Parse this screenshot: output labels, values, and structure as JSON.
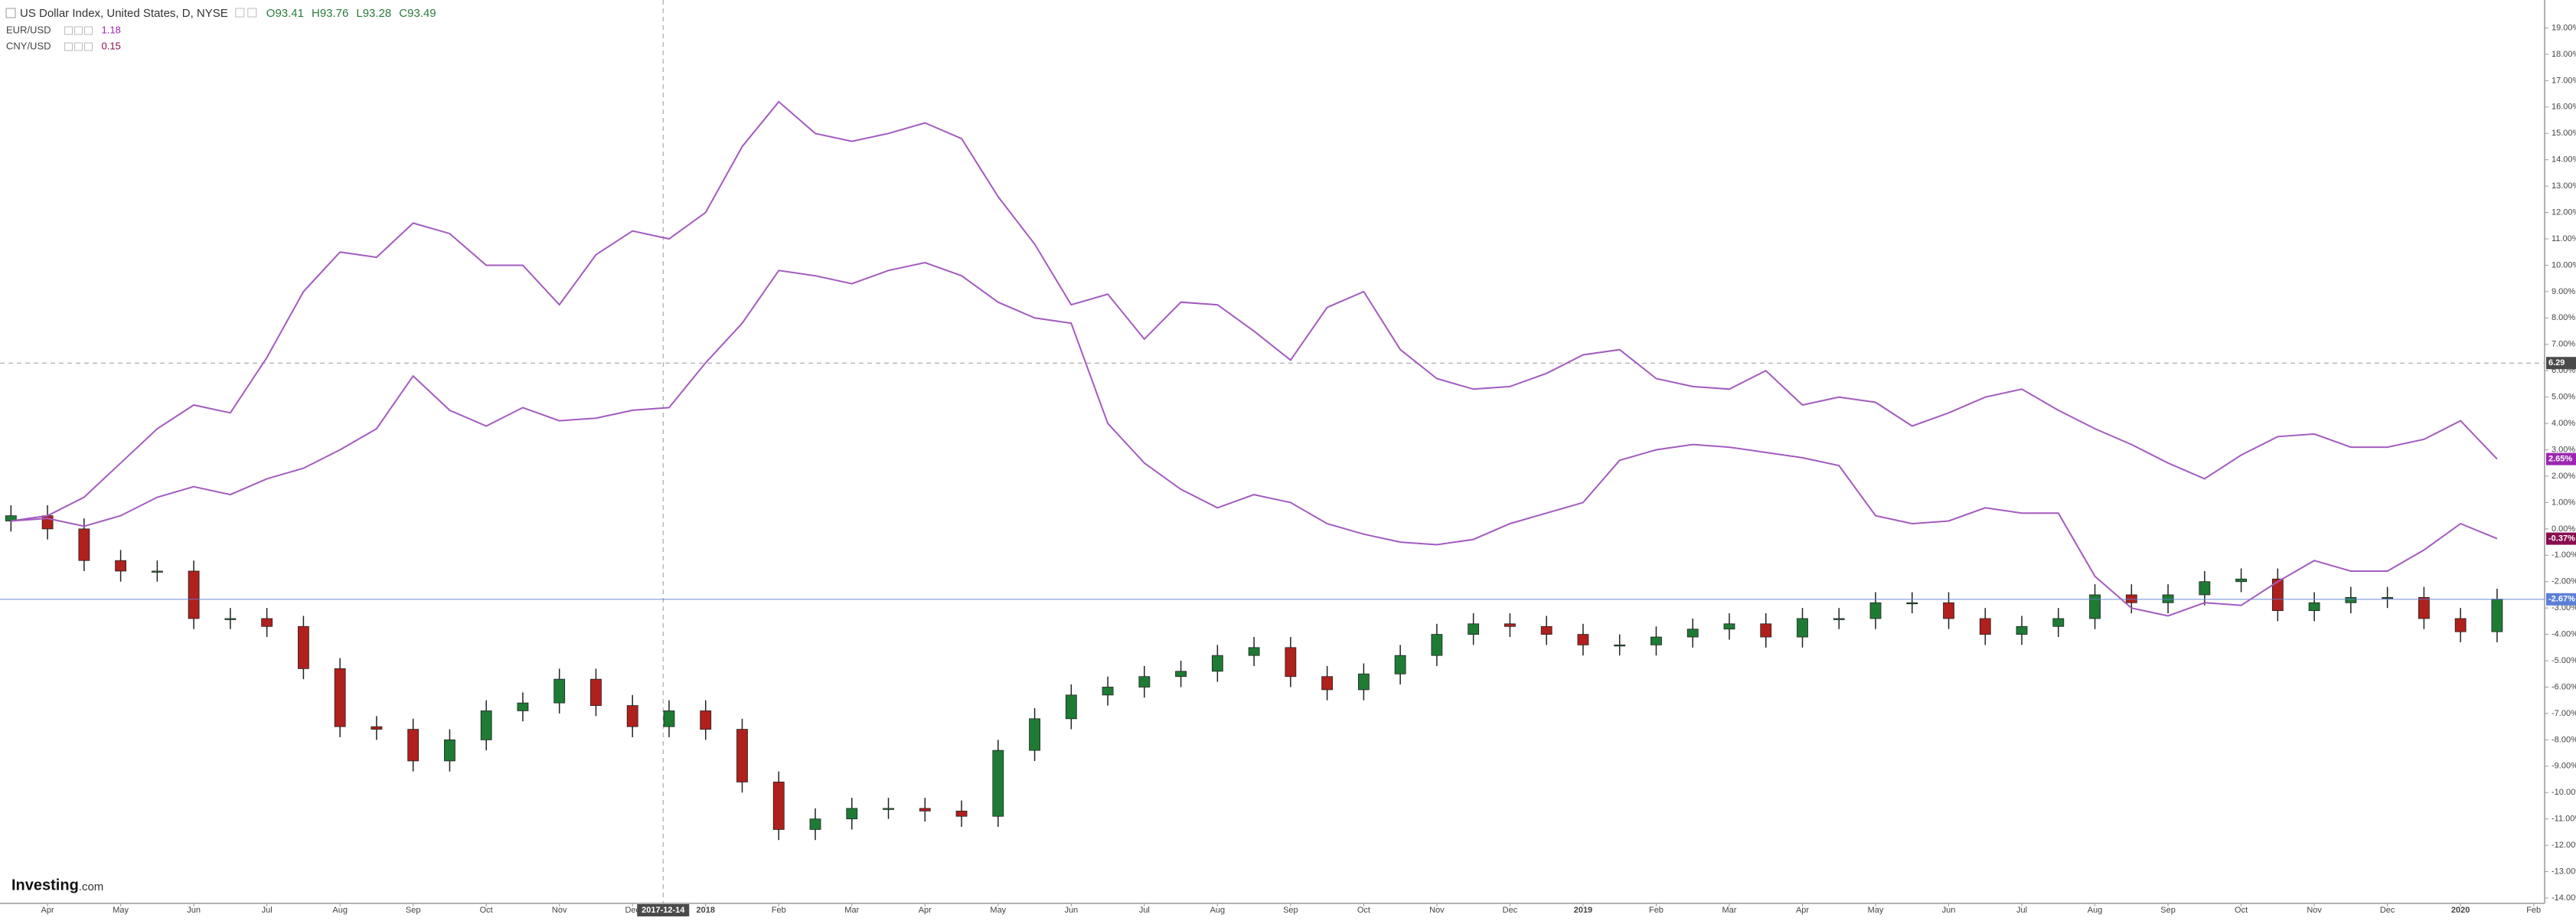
{
  "chart_data": {
    "type": "candlestick",
    "header": {
      "title": "US Dollar Index, United States, D, NYSE",
      "ohlc_labels": [
        "O93.41",
        "H93.76",
        "L93.28",
        "C93.49"
      ]
    },
    "xlim": [
      -0.3,
      69.3
    ],
    "xticks": [
      {
        "value": 1,
        "label": "Apr"
      },
      {
        "value": 3,
        "label": "May"
      },
      {
        "value": 5,
        "label": "Jun"
      },
      {
        "value": 7,
        "label": "Jul"
      },
      {
        "value": 9,
        "label": "Aug"
      },
      {
        "value": 11,
        "label": "Sep"
      },
      {
        "value": 13,
        "label": "Oct"
      },
      {
        "value": 15,
        "label": "Nov"
      },
      {
        "value": 17,
        "label": "Dec"
      },
      {
        "value": 19,
        "label": "2018"
      },
      {
        "value": 21,
        "label": "Feb"
      },
      {
        "value": 23,
        "label": "Mar"
      },
      {
        "value": 25,
        "label": "Apr"
      },
      {
        "value": 27,
        "label": "May"
      },
      {
        "value": 29,
        "label": "Jun"
      },
      {
        "value": 31,
        "label": "Jul"
      },
      {
        "value": 33,
        "label": "Aug"
      },
      {
        "value": 35,
        "label": "Sep"
      },
      {
        "value": 37,
        "label": "Oct"
      },
      {
        "value": 39,
        "label": "Nov"
      },
      {
        "value": 41,
        "label": "Dec"
      },
      {
        "value": 43,
        "label": "2019"
      },
      {
        "value": 45,
        "label": "Feb"
      },
      {
        "value": 47,
        "label": "Mar"
      },
      {
        "value": 49,
        "label": "Apr"
      },
      {
        "value": 51,
        "label": "May"
      },
      {
        "value": 53,
        "label": "Jun"
      },
      {
        "value": 55,
        "label": "Jul"
      },
      {
        "value": 57,
        "label": "Aug"
      },
      {
        "value": 59,
        "label": "Sep"
      },
      {
        "value": 61,
        "label": "Oct"
      },
      {
        "value": 63,
        "label": "Nov"
      },
      {
        "value": 65,
        "label": "Dec"
      },
      {
        "value": 67,
        "label": "2020"
      },
      {
        "value": 69,
        "label": "Feb"
      }
    ],
    "ylim": [
      -14,
      19
    ],
    "yticks": [
      {
        "value": 19,
        "label": "19.00%"
      },
      {
        "value": 18,
        "label": "18.00%"
      },
      {
        "value": 17,
        "label": "17.00%"
      },
      {
        "value": 16,
        "label": "16.00%"
      },
      {
        "value": 15,
        "label": "15.00%"
      },
      {
        "value": 14,
        "label": "14.00%"
      },
      {
        "value": 13,
        "label": "13.00%"
      },
      {
        "value": 12,
        "label": "12.00%"
      },
      {
        "value": 11,
        "label": "11.00%"
      },
      {
        "value": 10,
        "label": "10.00%"
      },
      {
        "value": 9,
        "label": "9.00%"
      },
      {
        "value": 8,
        "label": "8.00%"
      },
      {
        "value": 7,
        "label": "7.00%"
      },
      {
        "value": 6,
        "label": "6.00%"
      },
      {
        "value": 5,
        "label": "5.00%"
      },
      {
        "value": 4,
        "label": "4.00%"
      },
      {
        "value": 3,
        "label": "3.00%"
      },
      {
        "value": 2,
        "label": "2.00%"
      },
      {
        "value": 1,
        "label": "1.00%"
      },
      {
        "value": 0,
        "label": "0.00%"
      },
      {
        "value": -1,
        "label": "-1.00%"
      },
      {
        "value": -2,
        "label": "-2.00%"
      },
      {
        "value": -3,
        "label": "-3.00%"
      },
      {
        "value": -4,
        "label": "-4.00%"
      },
      {
        "value": -5,
        "label": "-5.00%"
      },
      {
        "value": -6,
        "label": "-6.00%"
      },
      {
        "value": -7,
        "label": "-7.00%"
      },
      {
        "value": -8,
        "label": "-8.00%"
      },
      {
        "value": -9,
        "label": "-9.00%"
      },
      {
        "value": -10,
        "label": "-10.00%"
      },
      {
        "value": -11,
        "label": "-11.00%"
      },
      {
        "value": -12,
        "label": "-12.00%"
      },
      {
        "value": -13,
        "label": "-13.00%"
      },
      {
        "value": -14,
        "label": "-14.00%"
      }
    ],
    "crosshair": {
      "x": "2017-12-14",
      "y": 6.29
    },
    "series": [
      {
        "name": "US Dollar Index, United States, D, NYSE",
        "type": "candlestick",
        "up_color": "#1e7b34",
        "down_color": "#b0201c",
        "tag_color": "#5b7fd6",
        "last_label": "-2.67%",
        "open": [
          0.3,
          0.5,
          0.0,
          -1.2,
          -1.6,
          -1.6,
          -3.4,
          -3.4,
          -3.7,
          -5.3,
          -7.5,
          -7.6,
          -8.8,
          -8.0,
          -6.9,
          -6.6,
          -5.7,
          -6.7,
          -7.5,
          -6.9,
          -7.6,
          -9.6,
          -11.4,
          -11.0,
          -10.6,
          -10.6,
          -10.7,
          -10.9,
          -8.4,
          -7.2,
          -6.3,
          -6.0,
          -5.6,
          -5.4,
          -4.8,
          -4.5,
          -5.6,
          -6.1,
          -5.5,
          -4.8,
          -4.0,
          -3.6,
          -3.7,
          -4.0,
          -4.4,
          -4.4,
          -4.1,
          -3.8,
          -3.6,
          -4.1,
          -3.4,
          -3.4,
          -2.8,
          -2.8,
          -3.4,
          -4.0,
          -3.7,
          -3.4,
          -2.5,
          -2.8,
          -2.5,
          -2.0,
          -1.9,
          -3.1,
          -2.8,
          -2.6,
          -2.6,
          -3.4,
          -3.9
        ],
        "high": [
          0.9,
          0.9,
          0.4,
          -0.8,
          -1.2,
          -1.2,
          -3.0,
          -3.0,
          -3.3,
          -4.9,
          -7.1,
          -7.2,
          -7.6,
          -6.5,
          -6.2,
          -5.3,
          -5.3,
          -6.3,
          -6.5,
          -6.5,
          -7.2,
          -9.2,
          -10.6,
          -10.2,
          -10.2,
          -10.2,
          -10.3,
          -8.0,
          -6.8,
          -5.9,
          -5.6,
          -5.2,
          -5.0,
          -4.4,
          -4.1,
          -4.1,
          -5.2,
          -5.1,
          -4.4,
          -3.6,
          -3.2,
          -3.2,
          -3.3,
          -3.6,
          -4.0,
          -3.7,
          -3.4,
          -3.2,
          -3.2,
          -3.0,
          -3.0,
          -2.4,
          -2.4,
          -2.4,
          -3.0,
          -3.3,
          -3.0,
          -2.1,
          -2.1,
          -2.1,
          -1.6,
          -1.5,
          -1.5,
          -2.4,
          -2.2,
          -2.2,
          -2.2,
          -3.0,
          -2.27
        ],
        "low": [
          -0.1,
          -0.4,
          -1.6,
          -2.0,
          -2.0,
          -3.8,
          -3.8,
          -4.1,
          -5.7,
          -7.9,
          -8.0,
          -9.2,
          -9.2,
          -8.4,
          -7.3,
          -7.0,
          -7.1,
          -7.9,
          -7.9,
          -8.0,
          -10.0,
          -11.8,
          -11.8,
          -11.4,
          -11.0,
          -11.1,
          -11.3,
          -11.3,
          -8.8,
          -7.6,
          -6.7,
          -6.4,
          -6.0,
          -5.8,
          -5.2,
          -6.0,
          -6.5,
          -6.5,
          -5.9,
          -5.2,
          -4.4,
          -4.1,
          -4.4,
          -4.8,
          -4.8,
          -4.8,
          -4.5,
          -4.2,
          -4.5,
          -4.5,
          -3.8,
          -3.8,
          -3.2,
          -3.8,
          -4.4,
          -4.4,
          -4.1,
          -3.8,
          -3.2,
          -3.2,
          -2.9,
          -2.4,
          -3.5,
          -3.5,
          -3.2,
          -3.0,
          -3.8,
          -4.3,
          -4.3
        ],
        "close": [
          0.5,
          0.0,
          -1.2,
          -1.6,
          -1.6,
          -3.4,
          -3.4,
          -3.7,
          -5.3,
          -7.5,
          -7.6,
          -8.8,
          -8.0,
          -6.9,
          -6.6,
          -5.7,
          -6.7,
          -7.5,
          -6.9,
          -7.6,
          -9.6,
          -11.4,
          -11.0,
          -10.6,
          -10.6,
          -10.7,
          -10.9,
          -8.4,
          -7.2,
          -6.3,
          -6.0,
          -5.6,
          -5.4,
          -4.8,
          -4.5,
          -5.6,
          -6.1,
          -5.5,
          -4.8,
          -4.0,
          -3.6,
          -3.7,
          -4.0,
          -4.4,
          -4.4,
          -4.1,
          -3.8,
          -3.6,
          -4.1,
          -3.4,
          -3.4,
          -2.8,
          -2.8,
          -3.4,
          -4.0,
          -3.7,
          -3.4,
          -2.5,
          -2.8,
          -2.5,
          -2.0,
          -1.9,
          -3.1,
          -2.8,
          -2.6,
          -2.6,
          -3.4,
          -3.9,
          -2.67
        ]
      },
      {
        "name": "EUR/USD",
        "type": "line",
        "legend_value": 1.18,
        "color": "#a35bbf",
        "tag_color": "#9c27b0",
        "last_label": "2.65%",
        "values": [
          0.3,
          0.5,
          1.2,
          2.5,
          3.8,
          4.7,
          4.4,
          6.5,
          9.0,
          10.5,
          10.3,
          11.6,
          11.2,
          10.0,
          10.0,
          8.5,
          10.4,
          11.3,
          11.0,
          12.0,
          14.5,
          16.2,
          15.0,
          14.7,
          15.0,
          15.4,
          14.8,
          12.6,
          10.8,
          8.5,
          8.9,
          7.2,
          8.6,
          8.5,
          7.5,
          6.4,
          8.4,
          9.0,
          6.8,
          5.7,
          5.3,
          5.4,
          5.9,
          6.6,
          6.8,
          5.7,
          5.4,
          5.3,
          6.0,
          4.7,
          5.0,
          4.8,
          3.9,
          4.4,
          5.0,
          5.3,
          4.5,
          3.8,
          3.2,
          2.5,
          1.9,
          2.8,
          3.5,
          3.6,
          3.1,
          3.1,
          3.4,
          4.1,
          2.65
        ]
      },
      {
        "name": "CNY/USD",
        "type": "line",
        "legend_value": 0.15,
        "color": "#a35bbf",
        "tag_color": "#880e4f",
        "last_label": "-0.37%",
        "values": [
          0.3,
          0.4,
          0.1,
          0.5,
          1.2,
          1.6,
          1.3,
          1.9,
          2.3,
          3.0,
          3.8,
          5.8,
          4.5,
          3.9,
          4.6,
          4.1,
          4.2,
          4.5,
          4.6,
          6.3,
          7.8,
          9.8,
          9.6,
          9.3,
          9.8,
          10.1,
          9.6,
          8.6,
          8.0,
          7.8,
          4.0,
          2.5,
          1.5,
          0.8,
          1.3,
          1.0,
          0.2,
          -0.2,
          -0.5,
          -0.6,
          -0.4,
          0.2,
          0.6,
          1.0,
          2.6,
          3.0,
          3.2,
          3.1,
          2.9,
          2.7,
          2.4,
          0.5,
          0.2,
          0.3,
          0.8,
          0.6,
          0.6,
          -1.8,
          -3.0,
          -3.3,
          -2.8,
          -2.9,
          -2.0,
          -1.2,
          -1.6,
          -1.6,
          -0.8,
          0.2,
          -0.37
        ]
      }
    ],
    "logo": {
      "name": "Investing",
      "suffix": ".com"
    }
  }
}
